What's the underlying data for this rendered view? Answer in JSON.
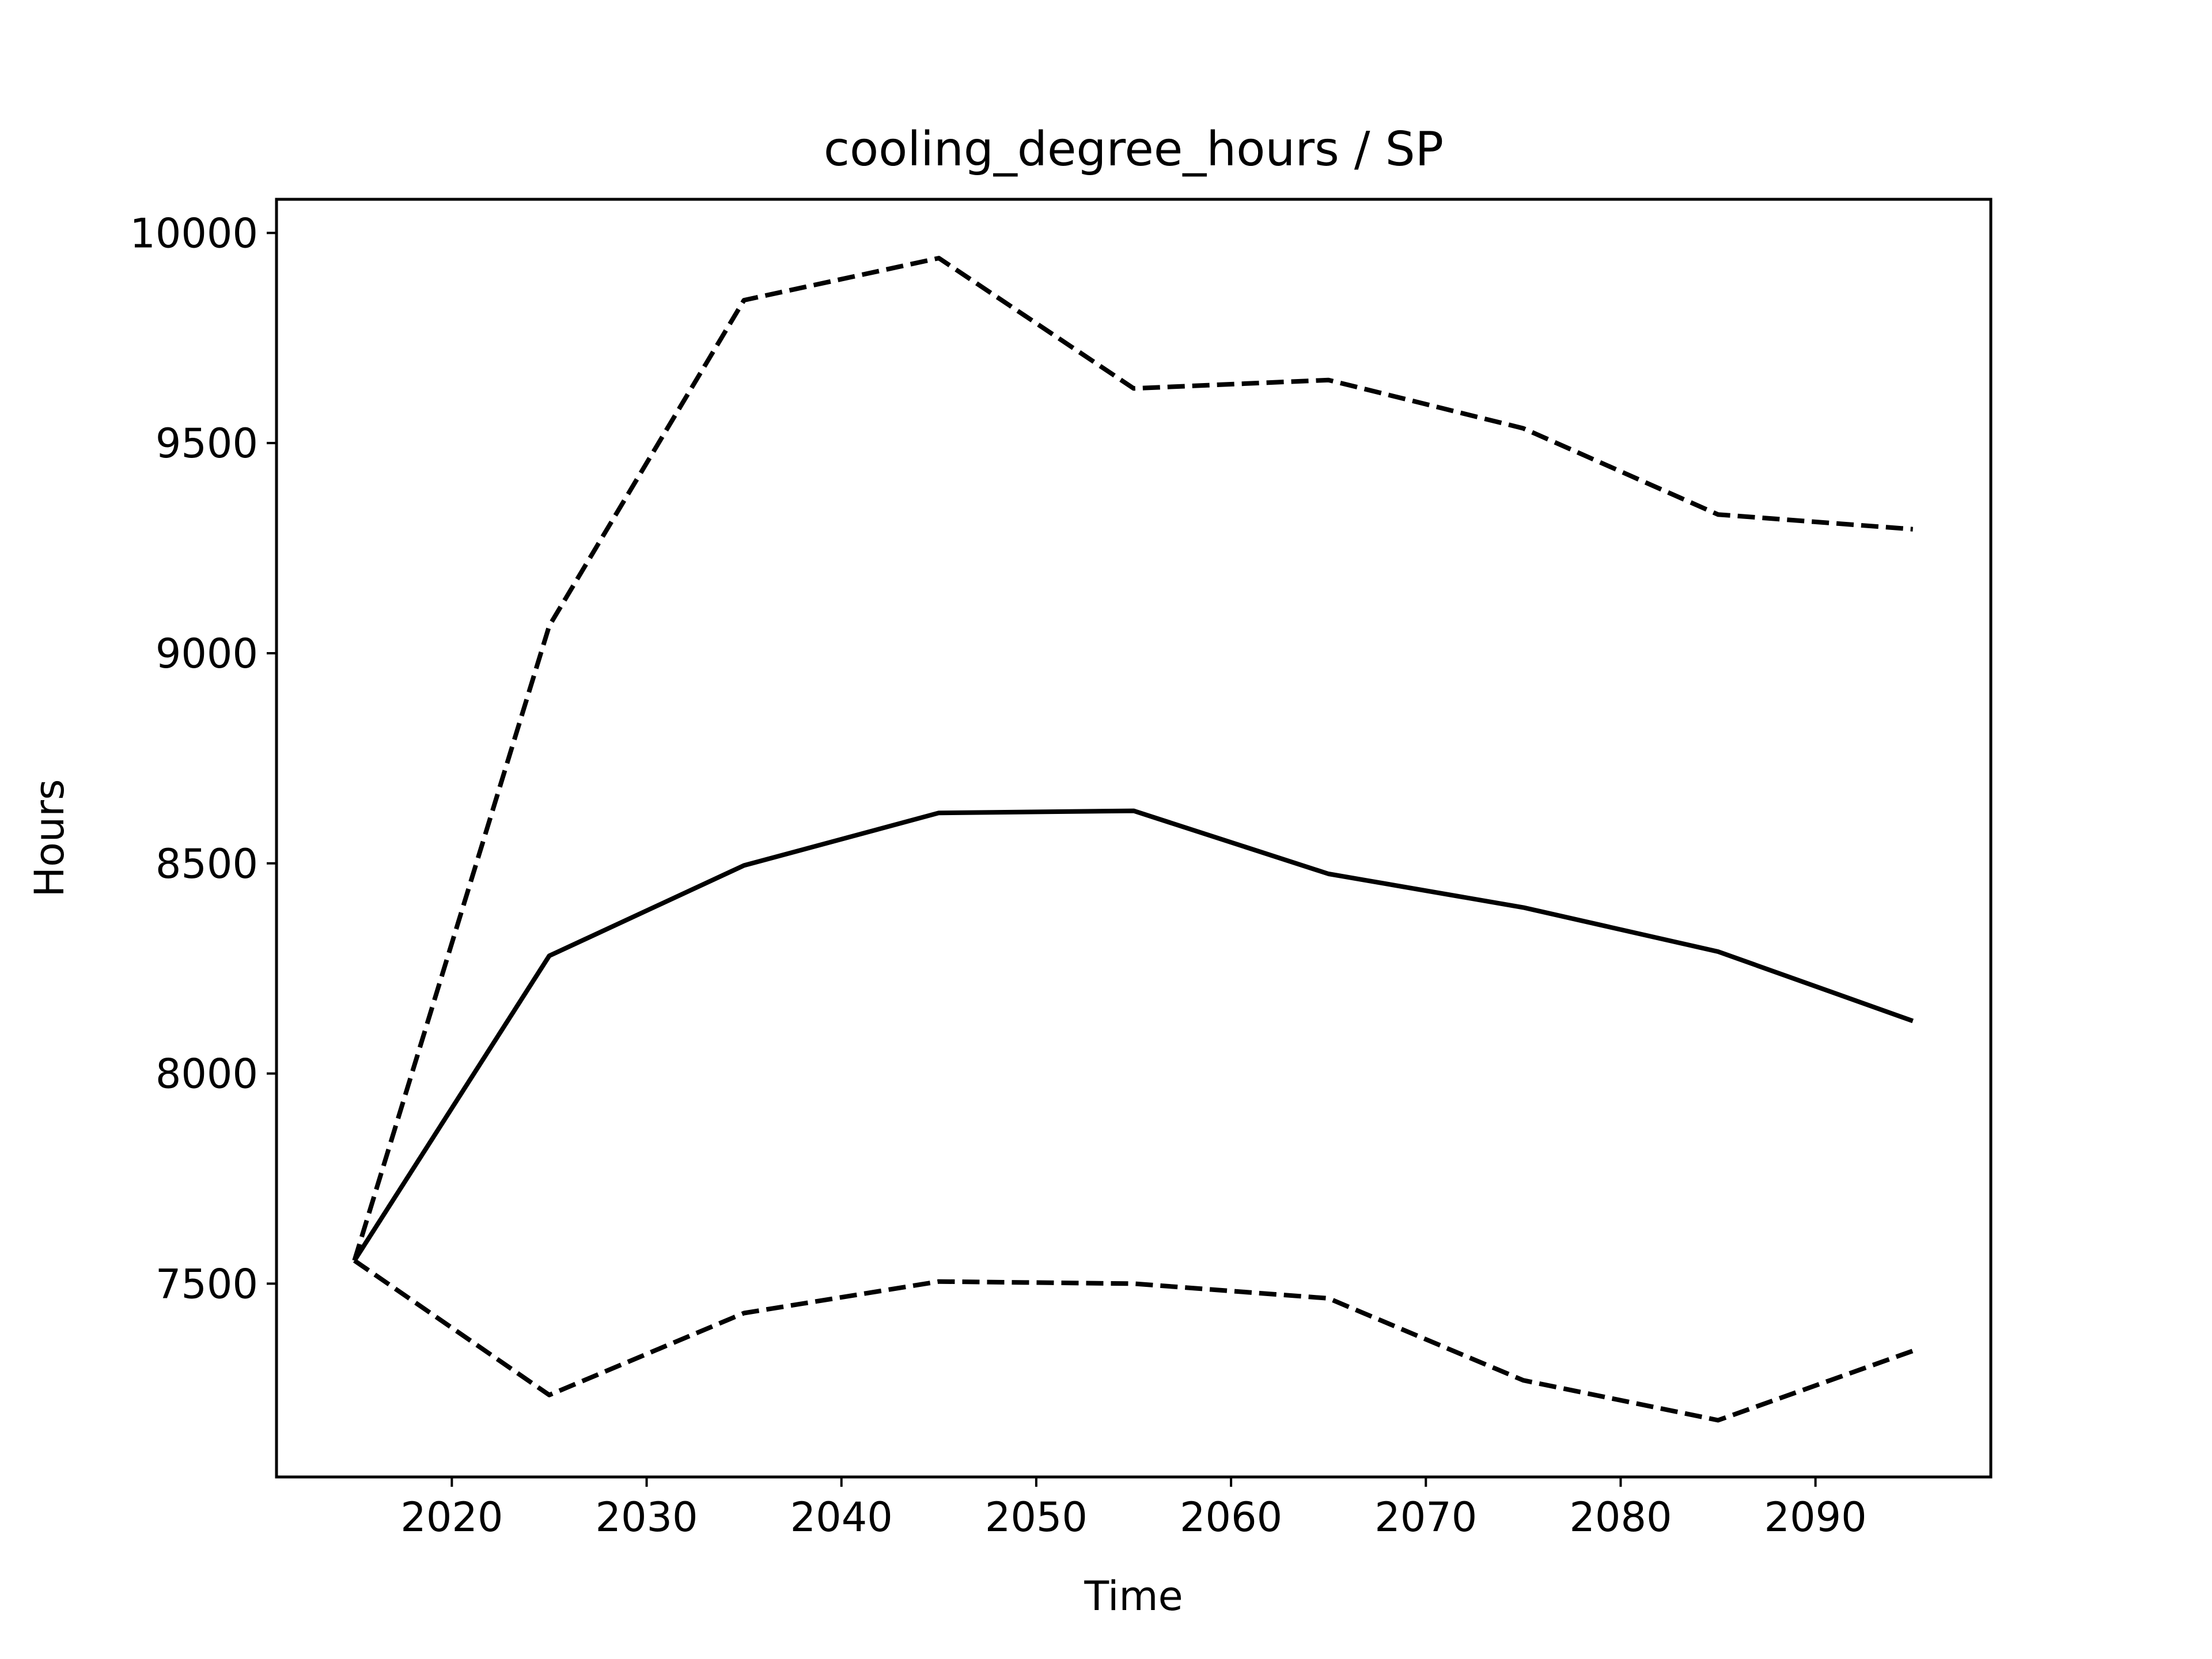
{
  "chart_data": {
    "type": "line",
    "title": "cooling_degree_hours / SP",
    "xlabel": "Time",
    "ylabel": "Hours",
    "xlim": [
      2011,
      2099
    ],
    "ylim": [
      7040,
      10080
    ],
    "x_ticks": [
      2020,
      2030,
      2040,
      2050,
      2060,
      2070,
      2080,
      2090
    ],
    "y_ticks": [
      7500,
      8000,
      8500,
      9000,
      9500,
      10000
    ],
    "grid": false,
    "legend": "none",
    "x": [
      2015,
      2025,
      2035,
      2045,
      2055,
      2065,
      2075,
      2085,
      2095
    ],
    "series": [
      {
        "style": "solid",
        "color": "#000000",
        "values": [
          7555,
          8280,
          8495,
          8620,
          8625,
          8475,
          8395,
          8290,
          8125
        ]
      },
      {
        "style": "dashed",
        "color": "#000000",
        "values": [
          7555,
          9065,
          9840,
          9940,
          9630,
          9650,
          9535,
          9330,
          9295
        ]
      },
      {
        "style": "dashed",
        "color": "#000000",
        "values": [
          7555,
          7235,
          7430,
          7505,
          7500,
          7465,
          7270,
          7175,
          7340
        ]
      }
    ]
  }
}
